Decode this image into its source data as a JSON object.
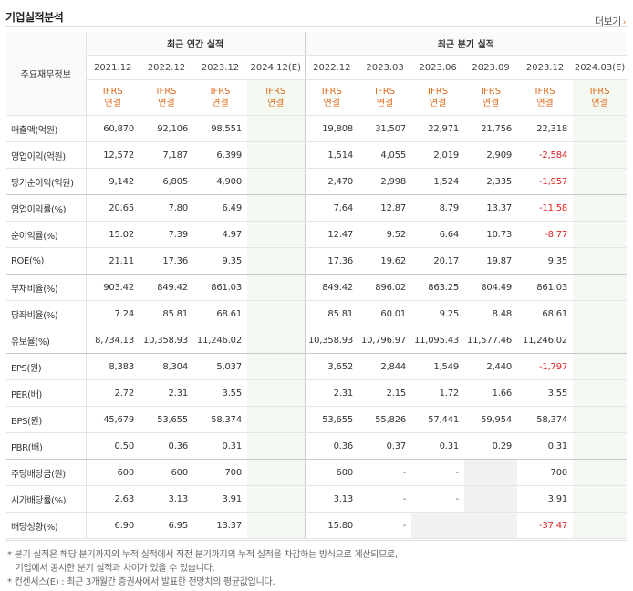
{
  "section_title": "기업실적분석",
  "more_label": "더보기",
  "corner_label": "주요재무정보",
  "group_annual": "최근 연간 실적",
  "group_quarter": "최근 분기 실적",
  "periods": [
    "2021.12",
    "2022.12",
    "2023.12",
    "2024.12(E)",
    "2022.12",
    "2023.03",
    "2023.06",
    "2023.09",
    "2023.12",
    "2024.03(E)"
  ],
  "ifrs_line1": "IFRS",
  "ifrs_line2": "연결",
  "rows": [
    {
      "label": "매출액(억원)",
      "values": [
        "60,870",
        "92,106",
        "98,551",
        "",
        "19,808",
        "31,507",
        "22,971",
        "21,756",
        "22,318",
        ""
      ]
    },
    {
      "label": "영업이익(억원)",
      "values": [
        "12,572",
        "7,187",
        "6,399",
        "",
        "1,514",
        "4,055",
        "2,019",
        "2,909",
        "-2,584",
        ""
      ]
    },
    {
      "label": "당기순이익(억원)",
      "values": [
        "9,142",
        "6,805",
        "4,900",
        "",
        "2,470",
        "2,998",
        "1,524",
        "2,335",
        "-1,957",
        ""
      ]
    },
    {
      "label": "영업이익률(%)",
      "values": [
        "20.65",
        "7.80",
        "6.49",
        "",
        "7.64",
        "12.87",
        "8.79",
        "13.37",
        "-11.58",
        ""
      ]
    },
    {
      "label": "순이익률(%)",
      "values": [
        "15.02",
        "7.39",
        "4.97",
        "",
        "12.47",
        "9.52",
        "6.64",
        "10.73",
        "-8.77",
        ""
      ]
    },
    {
      "label": "ROE(%)",
      "values": [
        "21.11",
        "17.36",
        "9.35",
        "",
        "17.36",
        "19.62",
        "20.17",
        "19.87",
        "9.35",
        ""
      ]
    },
    {
      "label": "부채비율(%)",
      "values": [
        "903.42",
        "849.42",
        "861.03",
        "",
        "849.42",
        "896.02",
        "863.25",
        "804.49",
        "861.03",
        ""
      ]
    },
    {
      "label": "당좌비율(%)",
      "values": [
        "7.24",
        "85.81",
        "68.61",
        "",
        "85.81",
        "60.01",
        "9.25",
        "8.48",
        "68.61",
        ""
      ]
    },
    {
      "label": "유보율(%)",
      "values": [
        "8,734.13",
        "10,358.93",
        "11,246.02",
        "",
        "10,358.93",
        "10,796.97",
        "11,095.43",
        "11,577.46",
        "11,246.02",
        ""
      ]
    },
    {
      "label": "EPS(원)",
      "values": [
        "8,383",
        "8,304",
        "5,037",
        "",
        "3,652",
        "2,844",
        "1,549",
        "2,440",
        "-1,797",
        ""
      ]
    },
    {
      "label": "PER(배)",
      "values": [
        "2.72",
        "2.31",
        "3.55",
        "",
        "2.31",
        "2.15",
        "1.72",
        "1.66",
        "3.55",
        ""
      ]
    },
    {
      "label": "BPS(원)",
      "values": [
        "45,679",
        "53,655",
        "58,374",
        "",
        "53,655",
        "55,826",
        "57,441",
        "59,954",
        "58,374",
        ""
      ]
    },
    {
      "label": "PBR(배)",
      "values": [
        "0.50",
        "0.36",
        "0.31",
        "",
        "0.36",
        "0.37",
        "0.31",
        "0.29",
        "0.31",
        ""
      ]
    },
    {
      "label": "주당배당금(원)",
      "values": [
        "600",
        "600",
        "700",
        "",
        "600",
        "-",
        "-",
        "",
        "700",
        ""
      ]
    },
    {
      "label": "시가배당률(%)",
      "values": [
        "2.63",
        "3.13",
        "3.91",
        "",
        "3.13",
        "-",
        "-",
        "",
        "3.91",
        ""
      ]
    },
    {
      "label": "배당성향(%)",
      "values": [
        "6.90",
        "6.95",
        "13.37",
        "",
        "15.80",
        "-",
        "",
        "",
        "-37.47",
        ""
      ]
    }
  ],
  "notes": [
    "* 분기 실적은 해당 분기까지의 누적 실적에서 직전 분기까지의 누적 실적을 차감하는 방식으로 계산되므로,",
    "   기업에서 공시한 분기 실적과 차이가 있을 수 있습니다.",
    "* 컨센서스(E) : 최근 3개월간 증권사에서 발표한 전망치의 평균값입니다."
  ]
}
